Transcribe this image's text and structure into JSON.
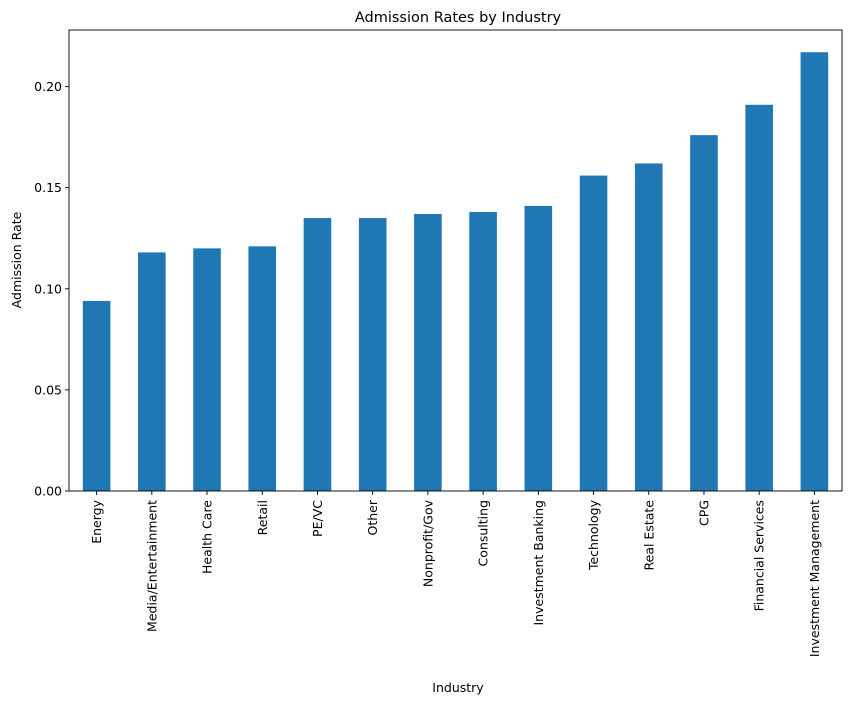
{
  "chart_data": {
    "type": "bar",
    "title": "Admission Rates by Industry",
    "xlabel": "Industry",
    "ylabel": "Admission Rate",
    "categories": [
      "Energy",
      "Media/Entertainment",
      "Health Care",
      "Retail",
      "PE/VC",
      "Other",
      "Nonprofit/Gov",
      "Consulting",
      "Investment Banking",
      "Technology",
      "Real Estate",
      "CPG",
      "Financial Services",
      "Investment Management"
    ],
    "values": [
      0.094,
      0.118,
      0.12,
      0.121,
      0.135,
      0.135,
      0.137,
      0.138,
      0.141,
      0.156,
      0.162,
      0.176,
      0.191,
      0.217
    ],
    "ylim": [
      0,
      0.228
    ],
    "yticks": [
      0.0,
      0.05,
      0.1,
      0.15,
      0.2
    ],
    "ytick_labels": [
      "0.00",
      "0.05",
      "0.10",
      "0.15",
      "0.20"
    ],
    "bar_color": "#1f77b4",
    "grid": false,
    "legend": "none"
  }
}
